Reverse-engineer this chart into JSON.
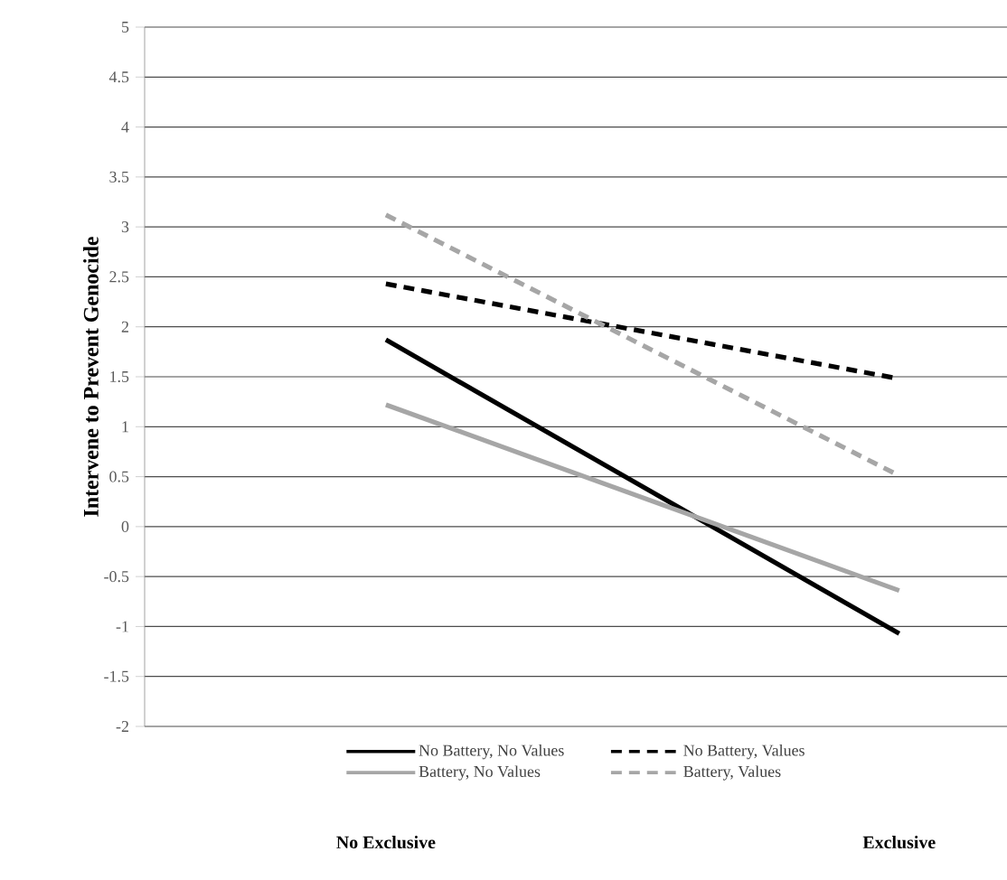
{
  "chart_data": {
    "type": "line",
    "ylabel": "**Intervene to Prevent Genocide**",
    "categories": [
      "**No Exclusive**",
      "**Exclusive**"
    ],
    "series": [
      {
        "name": "No Battery, No Values",
        "color": "#000000",
        "line_style": "solid",
        "values": [
          1.87,
          -1.07
        ]
      },
      {
        "name": "No Battery, Values",
        "color": "#000000",
        "line_style": "dashed",
        "values": [
          2.43,
          1.48
        ]
      },
      {
        "name": "Battery, No Values",
        "color": "#a6a6a6",
        "line_style": "solid",
        "values": [
          1.22,
          -0.64
        ]
      },
      {
        "name": "Battery, Values",
        "color": "#a6a6a6",
        "line_style": "dashed",
        "values": [
          3.12,
          0.51
        ]
      }
    ],
    "ylim": [
      -2,
      5
    ],
    "yticks": [
      -2,
      -1.5,
      -1,
      -0.5,
      0,
      0.5,
      1,
      1.5,
      2,
      2.5,
      3,
      3.5,
      4,
      4.5,
      5
    ],
    "grid": "y",
    "legend": "bottom",
    "marker": "none"
  }
}
